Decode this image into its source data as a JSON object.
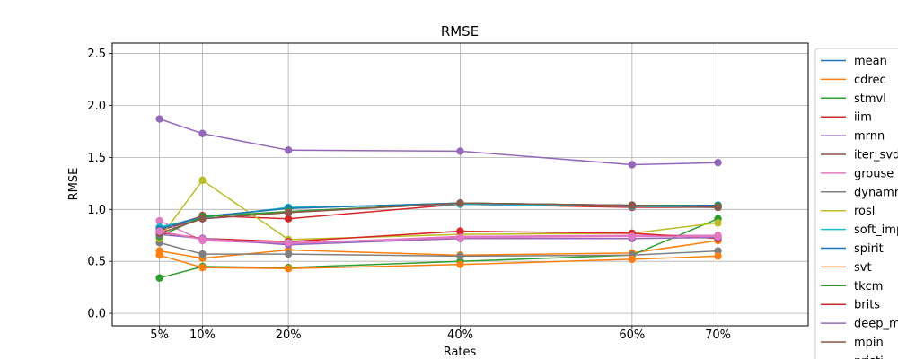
{
  "chart_data": {
    "type": "line",
    "title": "RMSE",
    "xlabel": "Rates",
    "ylabel": "RMSE",
    "x": [
      5,
      10,
      20,
      40,
      60,
      70
    ],
    "xtick_labels": [
      "5%",
      "10%",
      "20%",
      "40%",
      "60%",
      "70%"
    ],
    "xlim": [
      -0.5,
      80.5
    ],
    "ylim": [
      -0.12,
      2.6
    ],
    "yticks": [
      "0.0",
      "0.5",
      "1.0",
      "1.5",
      "2.0",
      "2.5"
    ],
    "grid": true,
    "legend_position": "right, outside plot",
    "series": [
      {
        "name": "mean",
        "color": "#1f77b4",
        "values": [
          0.82,
          0.93,
          1.01,
          1.06,
          1.04,
          1.04
        ]
      },
      {
        "name": "cdrec",
        "color": "#ff7f0e",
        "values": [
          0.6,
          0.53,
          0.61,
          0.56,
          0.58,
          0.7
        ]
      },
      {
        "name": "stmvl",
        "color": "#2ca02c",
        "values": [
          0.34,
          0.45,
          0.44,
          0.5,
          0.56,
          0.91
        ]
      },
      {
        "name": "iim",
        "color": "#d62728",
        "values": [
          0.79,
          0.94,
          0.91,
          1.05,
          1.02,
          1.02
        ]
      },
      {
        "name": "mrnn",
        "color": "#9467bd",
        "values": [
          1.87,
          1.73,
          1.57,
          1.56,
          1.43,
          1.45
        ]
      },
      {
        "name": "iter_svd",
        "color": "#8c564b",
        "values": [
          0.8,
          0.91,
          0.97,
          1.06,
          1.04,
          1.03
        ]
      },
      {
        "name": "grouse",
        "color": "#e377c2",
        "values": [
          0.89,
          0.7,
          0.67,
          0.74,
          0.75,
          0.75
        ]
      },
      {
        "name": "dynammo",
        "color": "#7f7f7f",
        "values": [
          0.68,
          0.57,
          0.57,
          0.55,
          0.56,
          0.6
        ]
      },
      {
        "name": "rosl",
        "color": "#bcbd22",
        "values": [
          0.72,
          1.28,
          0.71,
          0.76,
          0.77,
          0.87
        ]
      },
      {
        "name": "soft_impute",
        "color": "#17becf",
        "values": [
          0.83,
          0.92,
          1.02,
          1.05,
          1.03,
          1.02
        ]
      },
      {
        "name": "spirit",
        "color": "#1f77b4",
        "values": [
          0.81,
          0.93,
          1.01,
          1.06,
          1.04,
          1.04
        ]
      },
      {
        "name": "svt",
        "color": "#ff7f0e",
        "values": [
          0.56,
          0.44,
          0.43,
          0.47,
          0.52,
          0.55
        ]
      },
      {
        "name": "tkcm",
        "color": "#2ca02c",
        "values": [
          0.74,
          0.93,
          0.98,
          1.06,
          1.04,
          1.03
        ]
      },
      {
        "name": "brits",
        "color": "#d62728",
        "values": [
          0.78,
          0.72,
          0.69,
          0.79,
          0.77,
          0.72
        ]
      },
      {
        "name": "deep_mvi",
        "color": "#9467bd",
        "values": [
          0.76,
          0.72,
          0.66,
          0.72,
          0.72,
          0.73
        ]
      },
      {
        "name": "mpin",
        "color": "#8c564b",
        "values": [
          0.77,
          0.91,
          0.97,
          1.06,
          1.04,
          1.02
        ]
      },
      {
        "name": "pristi",
        "color": "#e377c2",
        "values": [
          0.79,
          0.71,
          0.68,
          0.73,
          0.74,
          0.74
        ]
      }
    ]
  }
}
